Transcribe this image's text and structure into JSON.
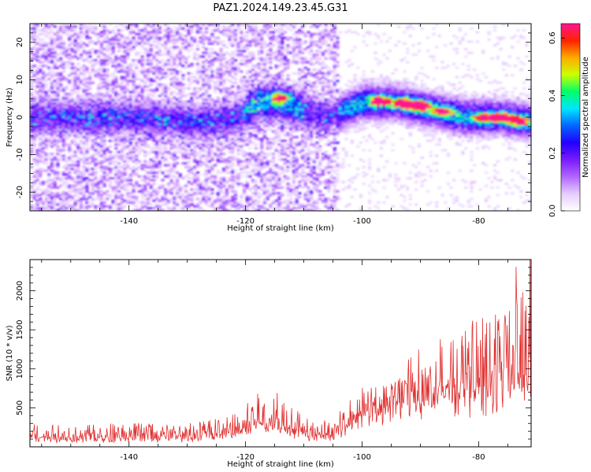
{
  "title": "PAZ1.2024.149.23.45.G31",
  "colors": {
    "snr_line": "#e03030",
    "colormap": [
      "#ffffff",
      "#e6ccff",
      "#b266ff",
      "#7a1aff",
      "#2200ff",
      "#0066ff",
      "#00e5ff",
      "#00ff66",
      "#ccff00",
      "#ffaa00",
      "#ff2200",
      "#ff1493"
    ]
  },
  "chart_data": [
    {
      "type": "heatmap",
      "title": "",
      "xlabel": "Height of straight line (km)",
      "ylabel": "Frequency (Hz)",
      "xlim": [
        -157,
        -71
      ],
      "ylim": [
        -25,
        25
      ],
      "x_ticks": [
        -140,
        -120,
        -100,
        -80
      ],
      "x_tick_labels": [
        "-140",
        "-120",
        "-100",
        "-80"
      ],
      "y_ticks": [
        -20,
        -10,
        0,
        10,
        20
      ],
      "y_tick_labels": [
        "-20",
        "-10",
        "0",
        "10",
        "20"
      ],
      "colorbar": {
        "label": "Normalized spectral amplitude",
        "range": [
          0,
          0.65
        ],
        "ticks": [
          0.0,
          0.2,
          0.4,
          0.6
        ],
        "tick_labels": [
          "0.0",
          "0.2",
          "0.4",
          "0.6"
        ]
      },
      "ridge": {
        "x": [
          -157,
          -150,
          -140,
          -130,
          -125,
          -121,
          -118,
          -114,
          -110,
          -106,
          -103,
          -100,
          -97,
          -94,
          -91,
          -88,
          -85,
          -82,
          -79,
          -76,
          -71
        ],
        "freq": [
          0,
          0,
          0,
          -1,
          -1,
          0,
          4,
          4,
          2,
          0,
          2,
          4,
          4,
          4,
          3,
          2,
          1,
          0,
          0,
          0,
          -1
        ]
      },
      "peaks": [
        {
          "x": -114,
          "freq": 5.5,
          "amp": 0.42
        },
        {
          "x": -97,
          "freq": 4.5,
          "amp": 0.5
        },
        {
          "x": -93,
          "freq": 3.8,
          "amp": 0.58
        },
        {
          "x": -90,
          "freq": 3.2,
          "amp": 0.62
        },
        {
          "x": -86,
          "freq": 1.5,
          "amp": 0.45
        },
        {
          "x": -79,
          "freq": 0.0,
          "amp": 0.45
        },
        {
          "x": -76,
          "freq": 0.0,
          "amp": 0.48
        },
        {
          "x": -73,
          "freq": -1.0,
          "amp": 0.42
        }
      ]
    },
    {
      "type": "line",
      "title": "",
      "xlabel": "Height of straight line (km)",
      "ylabel": "SNR (10 * v/v)",
      "xlim": [
        -157,
        -71
      ],
      "ylim": [
        0,
        2400
      ],
      "x_ticks": [
        -140,
        -120,
        -100,
        -80
      ],
      "x_tick_labels": [
        "-140",
        "-120",
        "-100",
        "-80"
      ],
      "y_ticks": [
        500,
        1000,
        1500,
        2000
      ],
      "y_tick_labels": [
        "500",
        "1000",
        "1500",
        "2000"
      ],
      "envelope": {
        "x": [
          -157,
          -140,
          -130,
          -122,
          -118,
          -115,
          -112,
          -108,
          -105,
          -102,
          -98,
          -95,
          -93,
          -91,
          -88,
          -85,
          -82,
          -79,
          -76,
          -74,
          -72,
          -71
        ],
        "baseline": [
          80,
          90,
          100,
          150,
          250,
          250,
          180,
          120,
          120,
          300,
          450,
          500,
          600,
          650,
          600,
          600,
          650,
          650,
          700,
          800,
          750,
          800
        ],
        "peak": [
          280,
          290,
          300,
          400,
          650,
          700,
          500,
          300,
          350,
          650,
          850,
          900,
          1150,
          1300,
          1200,
          1350,
          1550,
          1650,
          1850,
          2200,
          2050,
          2380
        ]
      }
    }
  ]
}
